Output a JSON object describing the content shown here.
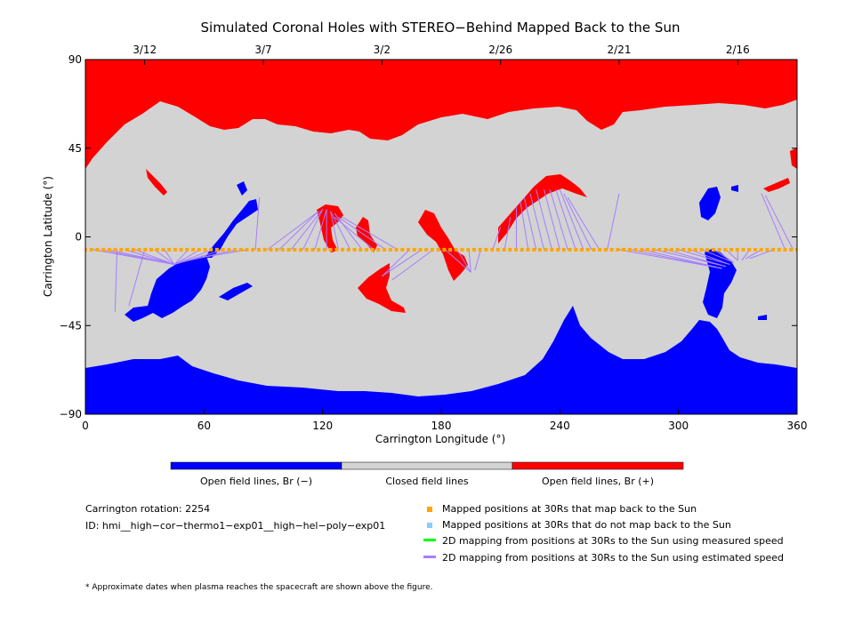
{
  "chart_data": {
    "type": "heatmap",
    "title": "Simulated Coronal Holes with STEREO−Behind Mapped Back to the Sun",
    "xlabel": "Carrington Longitude (°)",
    "ylabel": "Carrington Latitude (°)",
    "xlim": [
      0,
      360
    ],
    "ylim": [
      -90,
      90
    ],
    "x_ticks": [
      "0",
      "60",
      "120",
      "180",
      "240",
      "300",
      "360"
    ],
    "y_ticks": [
      "90",
      "45",
      "0",
      "−45",
      "−90"
    ],
    "top_axis_dates": [
      {
        "label": "3/12",
        "lon": 30
      },
      {
        "label": "3/7",
        "lon": 90
      },
      {
        "label": "3/2",
        "lon": 150
      },
      {
        "label": "2/26",
        "lon": 210
      },
      {
        "label": "2/21",
        "lon": 270
      },
      {
        "label": "2/16",
        "lon": 330
      }
    ],
    "colorbar": [
      {
        "label": "Open field lines, Br (−)",
        "color": "#0000ff"
      },
      {
        "label": "Closed field lines",
        "color": "#d3d3d3"
      },
      {
        "label": "Open field lines, Br (+)",
        "color": "#ff0000"
      }
    ],
    "mapped_positions": {
      "latitude": -6.5,
      "lon_start": 0,
      "lon_end": 360,
      "count": 120,
      "color": "#ffa500"
    },
    "mapping_lines_estimated": [
      [
        4,
        -6.5,
        45,
        -14
      ],
      [
        8,
        -6.5,
        45,
        -14
      ],
      [
        12,
        -6.5,
        45,
        -14
      ],
      [
        16,
        -6.5,
        15,
        -38
      ],
      [
        20,
        -6.5,
        45,
        -14
      ],
      [
        25,
        -6.5,
        45,
        -14
      ],
      [
        30,
        -6.5,
        22,
        -35
      ],
      [
        35,
        -6.5,
        45,
        -14
      ],
      [
        40,
        -6.5,
        45,
        -14
      ],
      [
        52,
        -6.5,
        45,
        -14
      ],
      [
        58,
        -6.5,
        45,
        -14
      ],
      [
        64,
        -6.5,
        45,
        -14
      ],
      [
        70,
        -6.5,
        45,
        -14
      ],
      [
        76,
        -6.5,
        48,
        -13
      ],
      [
        82,
        -6.5,
        50,
        -12
      ],
      [
        86,
        -6.5,
        88,
        20
      ],
      [
        92,
        -6.5,
        118,
        13
      ],
      [
        98,
        -6.5,
        118,
        13
      ],
      [
        104,
        -6.5,
        120,
        14
      ],
      [
        110,
        -6.5,
        120,
        14
      ],
      [
        116,
        -6.5,
        122,
        14
      ],
      [
        122,
        -6.5,
        122,
        14
      ],
      [
        128,
        -6.5,
        124,
        13
      ],
      [
        134,
        -6.5,
        124,
        13
      ],
      [
        140,
        -6.5,
        126,
        12
      ],
      [
        146,
        -6.5,
        126,
        10
      ],
      [
        152,
        -6.5,
        128,
        10
      ],
      [
        158,
        -6.5,
        130,
        10
      ],
      [
        164,
        -6.5,
        150,
        -20
      ],
      [
        170,
        -6.5,
        150,
        -20
      ],
      [
        176,
        -6.5,
        155,
        -22
      ],
      [
        182,
        -6.5,
        195,
        -18
      ],
      [
        188,
        -6.5,
        195,
        -18
      ],
      [
        194,
        -6.5,
        195,
        -18
      ],
      [
        200,
        -6.5,
        197,
        -17
      ],
      [
        206,
        -6.5,
        210,
        5
      ],
      [
        212,
        -6.5,
        215,
        10
      ],
      [
        218,
        -6.5,
        218,
        15
      ],
      [
        224,
        -6.5,
        220,
        18
      ],
      [
        228,
        -6.5,
        222,
        20
      ],
      [
        232,
        -6.5,
        225,
        22
      ],
      [
        236,
        -6.5,
        228,
        24
      ],
      [
        240,
        -6.5,
        232,
        24
      ],
      [
        244,
        -6.5,
        235,
        24
      ],
      [
        248,
        -6.5,
        238,
        24
      ],
      [
        252,
        -6.5,
        240,
        24
      ],
      [
        256,
        -6.5,
        242,
        22
      ],
      [
        260,
        -6.5,
        244,
        20
      ],
      [
        264,
        -6.5,
        270,
        22
      ],
      [
        270,
        -6.5,
        322,
        -16
      ],
      [
        276,
        -6.5,
        322,
        -16
      ],
      [
        282,
        -6.5,
        322,
        -16
      ],
      [
        288,
        -6.5,
        324,
        -15
      ],
      [
        294,
        -6.5,
        324,
        -15
      ],
      [
        300,
        -6.5,
        326,
        -14
      ],
      [
        306,
        -6.5,
        326,
        -14
      ],
      [
        312,
        -6.5,
        328,
        -13
      ],
      [
        318,
        -6.5,
        328,
        -13
      ],
      [
        324,
        -6.5,
        330,
        -12
      ],
      [
        330,
        -6.5,
        330,
        -12
      ],
      [
        336,
        -6.5,
        332,
        -12
      ],
      [
        342,
        -6.5,
        334,
        -11
      ],
      [
        348,
        -6.5,
        336,
        -11
      ],
      [
        354,
        -6.5,
        342,
        22
      ],
      [
        358,
        -6.5,
        344,
        21
      ]
    ]
  },
  "colorbar_labels": {
    "neg": "Open field lines, Br (−)",
    "closed": "Closed field lines",
    "pos": "Open field lines, Br (+)"
  },
  "info": {
    "rotation": "Carrington rotation: 2254",
    "id": "ID: hmi__high−cor−thermo1−exp01__high−hel−poly−exp01",
    "footnote": "* Approximate dates when plasma reaches the spacecraft are shown above the figure."
  },
  "legend": [
    {
      "label": "Mapped positions at 30Rs that map back to the Sun",
      "kind": "square",
      "color": "#ffa500"
    },
    {
      "label": "Mapped positions at 30Rs that do not map back to the Sun",
      "kind": "square",
      "color": "#87cefa"
    },
    {
      "label": "2D mapping from positions at 30Rs to the Sun using measured speed",
      "kind": "line",
      "color": "#00ff00"
    },
    {
      "label": "2D mapping from positions at 30Rs to the Sun using estimated speed",
      "kind": "line",
      "color": "#a57eff"
    }
  ]
}
